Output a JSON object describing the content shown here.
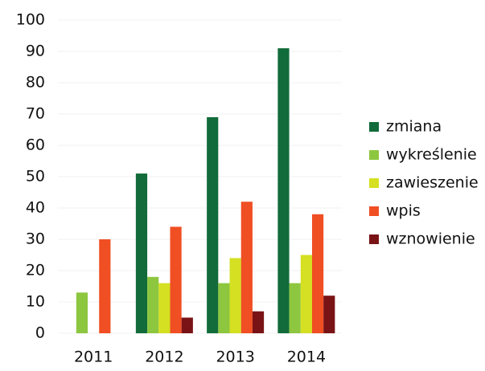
{
  "chart_data": {
    "type": "bar",
    "categories": [
      "2011",
      "2012",
      "2013",
      "2014"
    ],
    "series": [
      {
        "name": "zmiana",
        "color": "#116b3a",
        "values": [
          0,
          51,
          69,
          91
        ]
      },
      {
        "name": "wykreślenie",
        "color": "#8dc63f",
        "values": [
          13,
          18,
          16,
          16
        ]
      },
      {
        "name": "zawieszenie",
        "color": "#d4e021",
        "values": [
          0,
          16,
          24,
          25
        ]
      },
      {
        "name": "wpis",
        "color": "#f04e23",
        "values": [
          30,
          34,
          42,
          38
        ]
      },
      {
        "name": "wznowienie",
        "color": "#7a1315",
        "values": [
          0,
          5,
          7,
          12
        ]
      }
    ],
    "ylim": [
      0,
      100
    ],
    "yticks": [
      0,
      10,
      20,
      30,
      40,
      50,
      60,
      70,
      80,
      90,
      100
    ],
    "grid": true,
    "legend": "right"
  }
}
